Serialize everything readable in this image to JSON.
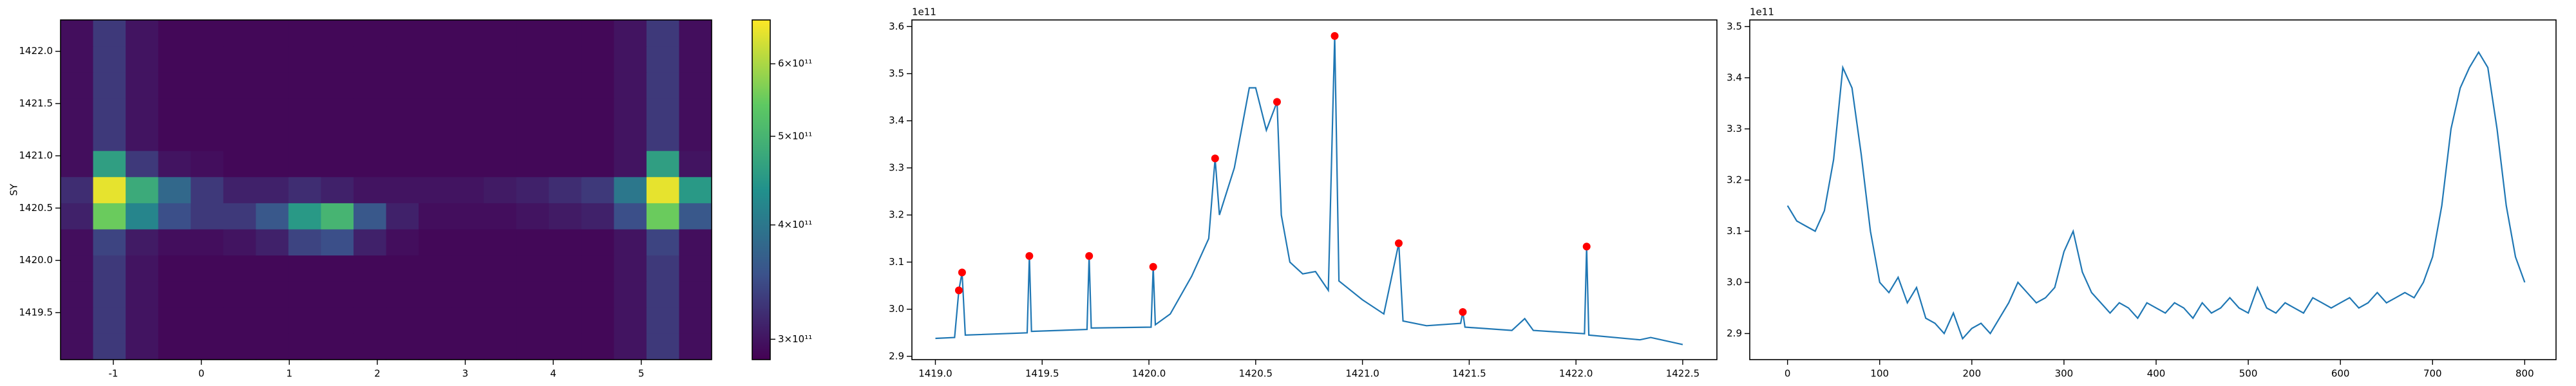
{
  "chart_data": [
    {
      "type": "heatmap",
      "ylabel": "SY",
      "colormap": "viridis",
      "scale": "log",
      "xbins": [
        -1.6,
        -1.23,
        -0.86,
        -0.49,
        -0.12,
        0.25,
        0.62,
        0.99,
        1.36,
        1.73,
        2.1,
        2.47,
        2.84,
        3.21,
        3.58,
        3.95,
        4.32,
        4.69,
        5.06,
        5.43,
        5.8
      ],
      "ybins": [
        1419.05,
        1419.3,
        1419.55,
        1419.8,
        1420.05,
        1420.3,
        1420.55,
        1420.8,
        1421.05,
        1421.3,
        1421.55,
        1421.8,
        1422.05,
        1422.3
      ],
      "z": [
        [
          295000000000.0,
          330000000000.0,
          300000000000.0,
          290000000000.0,
          290000000000.0,
          290000000000.0,
          290000000000.0,
          290000000000.0,
          290000000000.0,
          290000000000.0,
          290000000000.0,
          290000000000.0,
          290000000000.0,
          290000000000.0,
          290000000000.0,
          290000000000.0,
          290000000000.0,
          300000000000.0,
          330000000000.0,
          295000000000.0
        ],
        [
          295000000000.0,
          330000000000.0,
          300000000000.0,
          290000000000.0,
          290000000000.0,
          290000000000.0,
          290000000000.0,
          290000000000.0,
          290000000000.0,
          290000000000.0,
          290000000000.0,
          290000000000.0,
          290000000000.0,
          290000000000.0,
          290000000000.0,
          290000000000.0,
          290000000000.0,
          300000000000.0,
          330000000000.0,
          295000000000.0
        ],
        [
          295000000000.0,
          330000000000.0,
          300000000000.0,
          290000000000.0,
          290000000000.0,
          290000000000.0,
          290000000000.0,
          290000000000.0,
          290000000000.0,
          290000000000.0,
          290000000000.0,
          290000000000.0,
          290000000000.0,
          290000000000.0,
          290000000000.0,
          290000000000.0,
          290000000000.0,
          300000000000.0,
          330000000000.0,
          295000000000.0
        ],
        [
          295000000000.0,
          330000000000.0,
          300000000000.0,
          290000000000.0,
          290000000000.0,
          290000000000.0,
          290000000000.0,
          290000000000.0,
          290000000000.0,
          290000000000.0,
          290000000000.0,
          290000000000.0,
          290000000000.0,
          290000000000.0,
          290000000000.0,
          290000000000.0,
          290000000000.0,
          300000000000.0,
          330000000000.0,
          295000000000.0
        ],
        [
          295000000000.0,
          340000000000.0,
          305000000000.0,
          295000000000.0,
          295000000000.0,
          300000000000.0,
          310000000000.0,
          340000000000.0,
          350000000000.0,
          310000000000.0,
          295000000000.0,
          290000000000.0,
          290000000000.0,
          290000000000.0,
          290000000000.0,
          290000000000.0,
          290000000000.0,
          300000000000.0,
          340000000000.0,
          295000000000.0
        ],
        [
          310000000000.0,
          550000000000.0,
          420000000000.0,
          350000000000.0,
          330000000000.0,
          330000000000.0,
          360000000000.0,
          450000000000.0,
          500000000000.0,
          360000000000.0,
          310000000000.0,
          295000000000.0,
          295000000000.0,
          295000000000.0,
          300000000000.0,
          305000000000.0,
          310000000000.0,
          350000000000.0,
          550000000000.0,
          360000000000.0
        ],
        [
          320000000000.0,
          650000000000.0,
          480000000000.0,
          380000000000.0,
          330000000000.0,
          310000000000.0,
          310000000000.0,
          320000000000.0,
          310000000000.0,
          300000000000.0,
          300000000000.0,
          300000000000.0,
          300000000000.0,
          305000000000.0,
          310000000000.0,
          320000000000.0,
          330000000000.0,
          400000000000.0,
          650000000000.0,
          450000000000.0
        ],
        [
          295000000000.0,
          460000000000.0,
          330000000000.0,
          300000000000.0,
          295000000000.0,
          290000000000.0,
          290000000000.0,
          290000000000.0,
          290000000000.0,
          290000000000.0,
          290000000000.0,
          290000000000.0,
          290000000000.0,
          290000000000.0,
          290000000000.0,
          290000000000.0,
          290000000000.0,
          300000000000.0,
          460000000000.0,
          300000000000.0
        ],
        [
          295000000000.0,
          330000000000.0,
          300000000000.0,
          290000000000.0,
          290000000000.0,
          290000000000.0,
          290000000000.0,
          290000000000.0,
          290000000000.0,
          290000000000.0,
          290000000000.0,
          290000000000.0,
          290000000000.0,
          290000000000.0,
          290000000000.0,
          290000000000.0,
          290000000000.0,
          300000000000.0,
          330000000000.0,
          295000000000.0
        ],
        [
          295000000000.0,
          330000000000.0,
          300000000000.0,
          290000000000.0,
          290000000000.0,
          290000000000.0,
          290000000000.0,
          290000000000.0,
          290000000000.0,
          290000000000.0,
          290000000000.0,
          290000000000.0,
          290000000000.0,
          290000000000.0,
          290000000000.0,
          290000000000.0,
          290000000000.0,
          300000000000.0,
          330000000000.0,
          295000000000.0
        ],
        [
          295000000000.0,
          330000000000.0,
          300000000000.0,
          290000000000.0,
          290000000000.0,
          290000000000.0,
          290000000000.0,
          290000000000.0,
          290000000000.0,
          290000000000.0,
          290000000000.0,
          290000000000.0,
          290000000000.0,
          290000000000.0,
          290000000000.0,
          290000000000.0,
          290000000000.0,
          300000000000.0,
          330000000000.0,
          295000000000.0
        ],
        [
          295000000000.0,
          330000000000.0,
          300000000000.0,
          290000000000.0,
          290000000000.0,
          290000000000.0,
          290000000000.0,
          290000000000.0,
          290000000000.0,
          290000000000.0,
          290000000000.0,
          290000000000.0,
          290000000000.0,
          290000000000.0,
          290000000000.0,
          290000000000.0,
          290000000000.0,
          300000000000.0,
          330000000000.0,
          295000000000.0
        ],
        [
          295000000000.0,
          330000000000.0,
          300000000000.0,
          290000000000.0,
          290000000000.0,
          290000000000.0,
          290000000000.0,
          290000000000.0,
          290000000000.0,
          290000000000.0,
          290000000000.0,
          290000000000.0,
          290000000000.0,
          290000000000.0,
          290000000000.0,
          290000000000.0,
          290000000000.0,
          300000000000.0,
          330000000000.0,
          295000000000.0
        ]
      ],
      "xlim": [
        -1.6,
        5.8
      ],
      "xticks": [
        -1,
        0,
        1,
        2,
        3,
        4,
        5
      ],
      "ylim": [
        1419.05,
        1422.3
      ],
      "yticks": [
        1419.5,
        {
          "value": 1420,
          "label": "1420.0"
        },
        1420.5,
        {
          "value": 1421,
          "label": "1421.0"
        },
        1421.5,
        {
          "value": 1422,
          "label": "1422.0"
        }
      ],
      "clim": [
        285000000000.0,
        670000000000.0
      ],
      "cticks": [
        {
          "value": 300000000000.0,
          "label": "3×10¹¹"
        },
        {
          "value": 400000000000.0,
          "label": "4×10¹¹"
        },
        {
          "value": 500000000000.0,
          "label": "5×10¹¹"
        },
        {
          "value": 600000000000.0,
          "label": "6×10¹¹"
        }
      ]
    },
    {
      "type": "line",
      "color": "#1f77b4",
      "yoffset": "1e11",
      "x": [
        1419.0,
        1419.09,
        1419.11,
        1419.125,
        1419.14,
        1419.43,
        1419.44,
        1419.45,
        1419.71,
        1419.72,
        1419.73,
        1420.01,
        1420.02,
        1420.03,
        1420.1,
        1420.2,
        1420.28,
        1420.31,
        1420.33,
        1420.4,
        1420.47,
        1420.5,
        1420.55,
        1420.6,
        1420.62,
        1420.66,
        1420.72,
        1420.78,
        1420.84,
        1420.87,
        1420.89,
        1421.0,
        1421.1,
        1421.17,
        1421.19,
        1421.3,
        1421.46,
        1421.47,
        1421.48,
        1421.7,
        1421.76,
        1421.8,
        1422.04,
        1422.05,
        1422.06,
        1422.3,
        1422.35,
        1422.5
      ],
      "values": [
        2.938,
        2.94,
        3.04,
        3.078,
        2.945,
        2.95,
        3.113,
        2.953,
        2.957,
        3.113,
        2.96,
        2.962,
        3.09,
        2.967,
        2.99,
        3.07,
        3.15,
        3.32,
        3.2,
        3.3,
        3.47,
        3.47,
        3.38,
        3.44,
        3.2,
        3.1,
        3.075,
        3.08,
        3.04,
        3.58,
        3.06,
        3.02,
        2.99,
        3.14,
        2.975,
        2.965,
        2.97,
        2.994,
        2.962,
        2.955,
        2.98,
        2.955,
        2.948,
        3.133,
        2.945,
        2.935,
        2.94,
        2.925
      ],
      "markers": {
        "color": "#ff0000",
        "x": [
          1419.11,
          1419.125,
          1419.44,
          1419.72,
          1420.02,
          1420.31,
          1420.6,
          1420.87,
          1421.17,
          1421.47,
          1422.05
        ],
        "values": [
          3.04,
          3.078,
          3.113,
          3.113,
          3.09,
          3.32,
          3.44,
          3.58,
          3.14,
          2.994,
          3.133
        ]
      },
      "xlim": [
        1418.89,
        1422.66
      ],
      "xticks": [
        {
          "value": 1419,
          "label": "1419.0"
        },
        1419.5,
        {
          "value": 1420,
          "label": "1420.0"
        },
        1420.5,
        {
          "value": 1421,
          "label": "1421.0"
        },
        1421.5,
        {
          "value": 1422,
          "label": "1422.0"
        },
        1422.5
      ],
      "ylim": [
        2.893,
        3.614
      ],
      "yticks": [
        2.9,
        {
          "value": 3,
          "label": "3.0"
        },
        3.1,
        3.2,
        3.3,
        3.4,
        3.5,
        3.6
      ]
    },
    {
      "type": "line",
      "color": "#1f77b4",
      "yoffset": "1e11",
      "x": [
        0,
        10,
        20,
        30,
        40,
        50,
        60,
        70,
        80,
        90,
        100,
        110,
        120,
        130,
        140,
        150,
        160,
        170,
        180,
        190,
        200,
        210,
        220,
        230,
        240,
        250,
        260,
        270,
        280,
        290,
        300,
        310,
        320,
        330,
        340,
        350,
        360,
        370,
        380,
        390,
        400,
        410,
        420,
        430,
        440,
        450,
        460,
        470,
        480,
        490,
        500,
        510,
        520,
        530,
        540,
        550,
        560,
        570,
        580,
        590,
        600,
        610,
        620,
        630,
        640,
        650,
        660,
        670,
        680,
        690,
        700,
        710,
        720,
        730,
        740,
        750,
        760,
        770,
        780,
        790,
        800
      ],
      "values": [
        3.15,
        3.12,
        3.11,
        3.1,
        3.14,
        3.24,
        3.42,
        3.38,
        3.25,
        3.1,
        3.0,
        2.98,
        3.01,
        2.96,
        2.99,
        2.93,
        2.92,
        2.9,
        2.94,
        2.89,
        2.91,
        2.92,
        2.9,
        2.93,
        2.96,
        3.0,
        2.98,
        2.96,
        2.97,
        2.99,
        3.06,
        3.1,
        3.02,
        2.98,
        2.96,
        2.94,
        2.96,
        2.95,
        2.93,
        2.96,
        2.95,
        2.94,
        2.96,
        2.95,
        2.93,
        2.96,
        2.94,
        2.95,
        2.97,
        2.95,
        2.94,
        2.99,
        2.95,
        2.94,
        2.96,
        2.95,
        2.94,
        2.97,
        2.96,
        2.95,
        2.96,
        2.97,
        2.95,
        2.96,
        2.98,
        2.96,
        2.97,
        2.98,
        2.97,
        3.0,
        3.05,
        3.15,
        3.3,
        3.38,
        3.42,
        3.45,
        3.42,
        3.3,
        3.15,
        3.05,
        3.0
      ],
      "xlim": [
        -41,
        834
      ],
      "xticks": [
        0,
        100,
        200,
        300,
        400,
        500,
        600,
        700,
        800
      ],
      "ylim": [
        2.849,
        3.513
      ],
      "yticks": [
        2.9,
        {
          "value": 3,
          "label": "3.0"
        },
        3.1,
        3.2,
        3.3,
        3.4,
        3.5
      ]
    }
  ]
}
